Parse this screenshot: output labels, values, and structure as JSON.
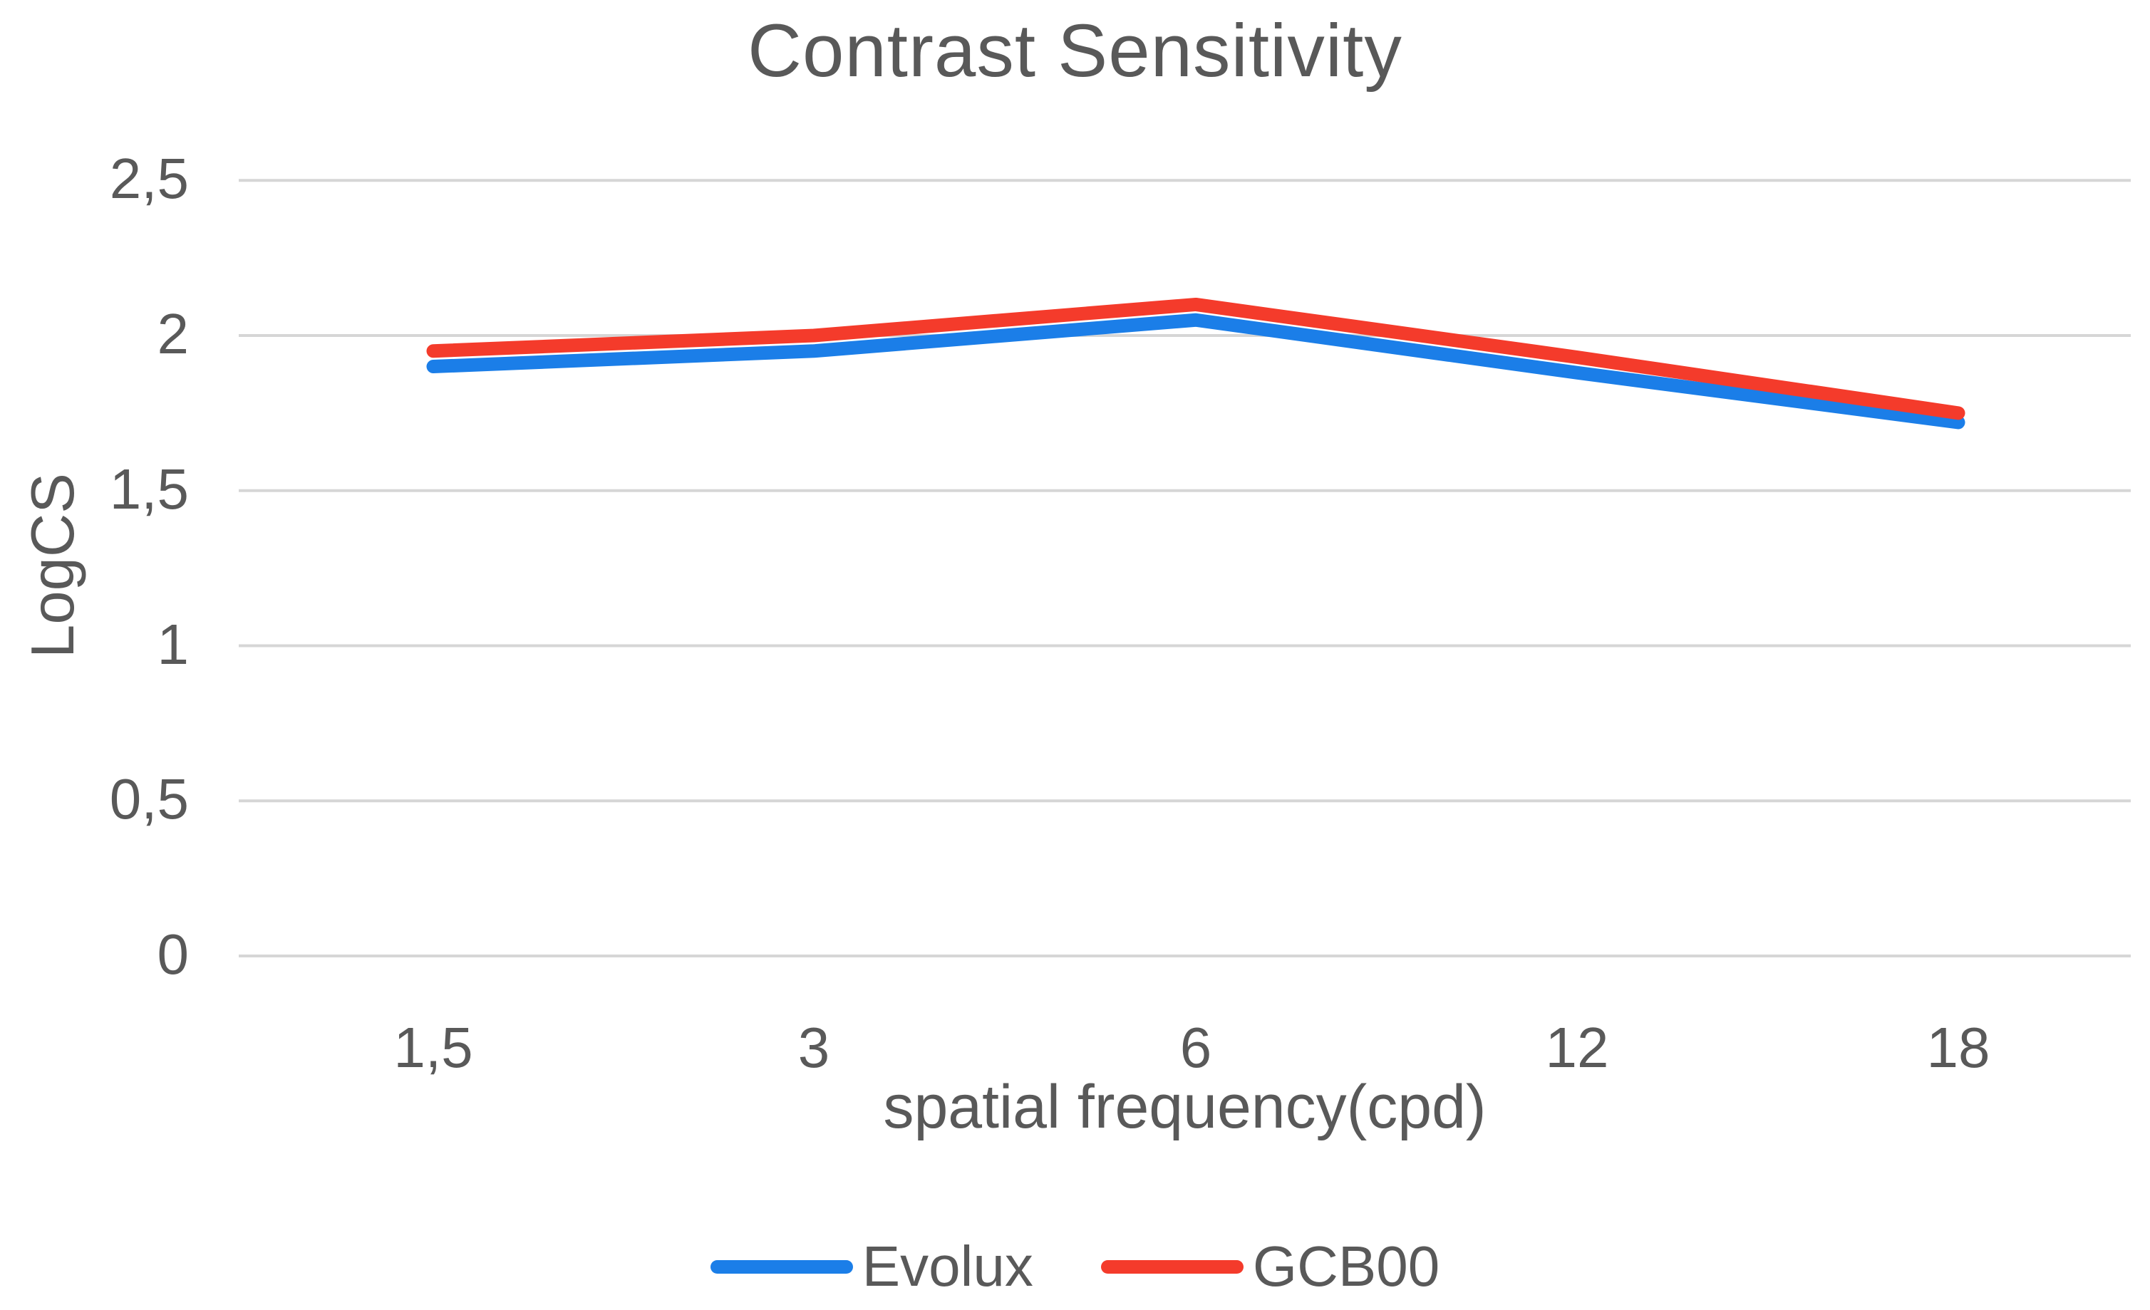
{
  "chart_data": {
    "type": "line",
    "title": "Contrast Sensitivity",
    "xlabel": "spatial frequency(cpd)",
    "ylabel": "LogCS",
    "categories": [
      "1,5",
      "3",
      "6",
      "12",
      "18"
    ],
    "category_values": [
      1.5,
      3,
      6,
      12,
      18
    ],
    "series": [
      {
        "name": "Evolux",
        "color": "#1B7EE8",
        "values": [
          1.9,
          1.95,
          2.05,
          1.88,
          1.72
        ]
      },
      {
        "name": "GCB00",
        "color": "#F43B2B",
        "values": [
          1.95,
          2.0,
          2.1,
          1.93,
          1.75
        ]
      }
    ],
    "ytick_labels": [
      "0",
      "0,5",
      "1",
      "1,5",
      "2",
      "2,5"
    ],
    "ytick_values": [
      0,
      0.5,
      1,
      1.5,
      2,
      2.5
    ],
    "ylim": [
      0,
      2.5
    ],
    "grid": "horizontal",
    "gridline_color": "#D6D6D6",
    "text_color": "#595959",
    "legend_position": "bottom",
    "decimal_separator": ","
  }
}
